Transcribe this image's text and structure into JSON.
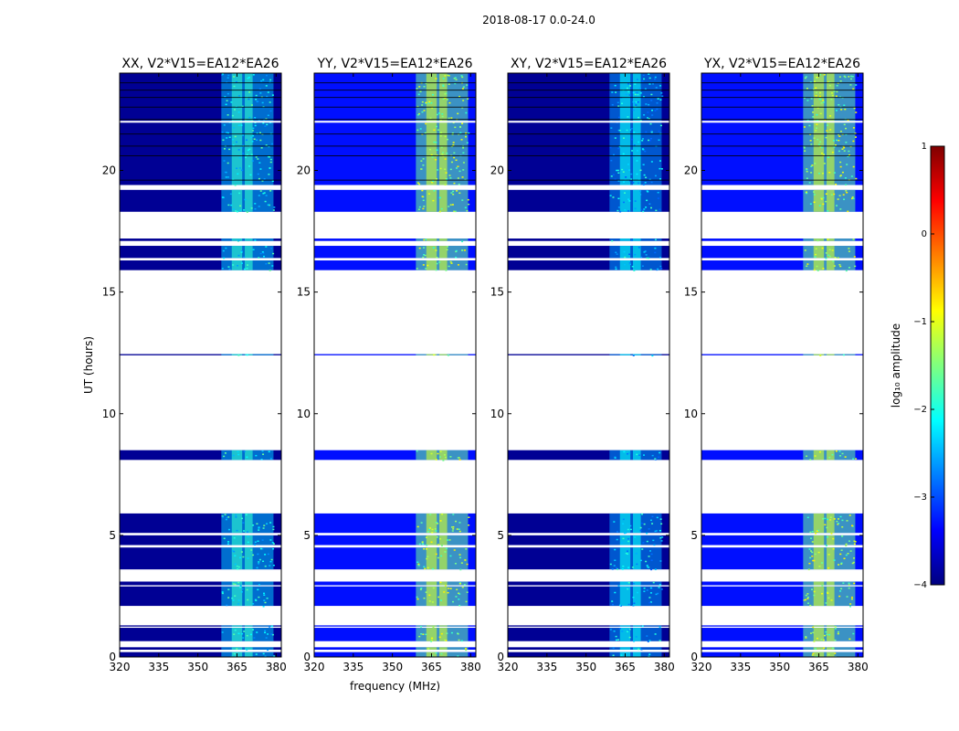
{
  "figure": {
    "suptitle": "2018-08-17 0.0-24.0"
  },
  "colors": {
    "masked": "#ffffff",
    "frame": "#000000",
    "colormap": [
      "#00007f",
      "#0000ff",
      "#007fff",
      "#00ffff",
      "#7fff7f",
      "#ffff00",
      "#ff7f00",
      "#ff0000",
      "#7f0000"
    ]
  },
  "chart_data": [
    {
      "type": "heatmap",
      "title": "XX, V2*V15=EA12*EA26",
      "xlabel": "",
      "ylabel": "UT (hours)",
      "xlim": [
        320,
        382
      ],
      "ylim": [
        0,
        24
      ],
      "xticks": [
        320,
        335,
        350,
        365,
        380
      ],
      "yticks": [
        0,
        5,
        10,
        15,
        20
      ],
      "background_log_amp": -3.9,
      "band_log_amp": -2.4,
      "band_mhz": [
        359,
        379
      ],
      "band_strong_mhz": [
        [
          363,
          367
        ],
        [
          368,
          371
        ]
      ]
    },
    {
      "type": "heatmap",
      "title": "YY, V2*V15=EA12*EA26",
      "xlabel": "frequency (MHz)",
      "ylabel": "",
      "xlim": [
        320,
        382
      ],
      "ylim": [
        0,
        24
      ],
      "xticks": [
        320,
        335,
        350,
        365,
        380
      ],
      "yticks": [
        0,
        5,
        10,
        15,
        20
      ],
      "background_log_amp": -3.3,
      "band_log_amp": -1.6,
      "band_mhz": [
        359,
        379
      ],
      "band_strong_mhz": [
        [
          363,
          367
        ],
        [
          368,
          371
        ]
      ]
    },
    {
      "type": "heatmap",
      "title": "XY, V2*V15=EA12*EA26",
      "xlabel": "",
      "ylabel": "",
      "xlim": [
        320,
        382
      ],
      "ylim": [
        0,
        24
      ],
      "xticks": [
        320,
        335,
        350,
        365,
        380
      ],
      "yticks": [
        0,
        5,
        10,
        15,
        20
      ],
      "background_log_amp": -3.9,
      "band_log_amp": -2.6,
      "band_mhz": [
        359,
        379
      ],
      "band_strong_mhz": [
        [
          363,
          367
        ],
        [
          368,
          371
        ]
      ]
    },
    {
      "type": "heatmap",
      "title": "YX, V2*V15=EA12*EA26",
      "xlabel": "",
      "ylabel": "",
      "xlim": [
        320,
        382
      ],
      "ylim": [
        0,
        24
      ],
      "xticks": [
        320,
        335,
        350,
        365,
        380
      ],
      "yticks": [
        0,
        5,
        10,
        15,
        20
      ],
      "background_log_amp": -3.3,
      "band_log_amp": -1.6,
      "band_mhz": [
        359,
        379
      ],
      "band_strong_mhz": [
        [
          363,
          367
        ],
        [
          368,
          371
        ]
      ]
    }
  ],
  "data_time_ranges_hours": [
    [
      0.0,
      0.2
    ],
    [
      0.3,
      0.4
    ],
    [
      0.65,
      1.2
    ],
    [
      1.25,
      1.3
    ],
    [
      2.1,
      2.9
    ],
    [
      2.95,
      3.1
    ],
    [
      3.6,
      4.5
    ],
    [
      4.6,
      5.0
    ],
    [
      5.1,
      5.9
    ],
    [
      8.1,
      8.5
    ],
    [
      12.4,
      12.45
    ],
    [
      15.9,
      16.3
    ],
    [
      16.4,
      16.9
    ],
    [
      17.1,
      17.2
    ],
    [
      18.3,
      19.2
    ],
    [
      19.4,
      24.0
    ]
  ],
  "colorbar": {
    "label": "log₁₀ amplitude",
    "range": [
      -4,
      1
    ],
    "ticks": [
      1,
      0,
      -1,
      -2,
      -3,
      -4
    ],
    "tick_labels": [
      "1",
      "0",
      "−1",
      "−2",
      "−3",
      "−4"
    ]
  }
}
